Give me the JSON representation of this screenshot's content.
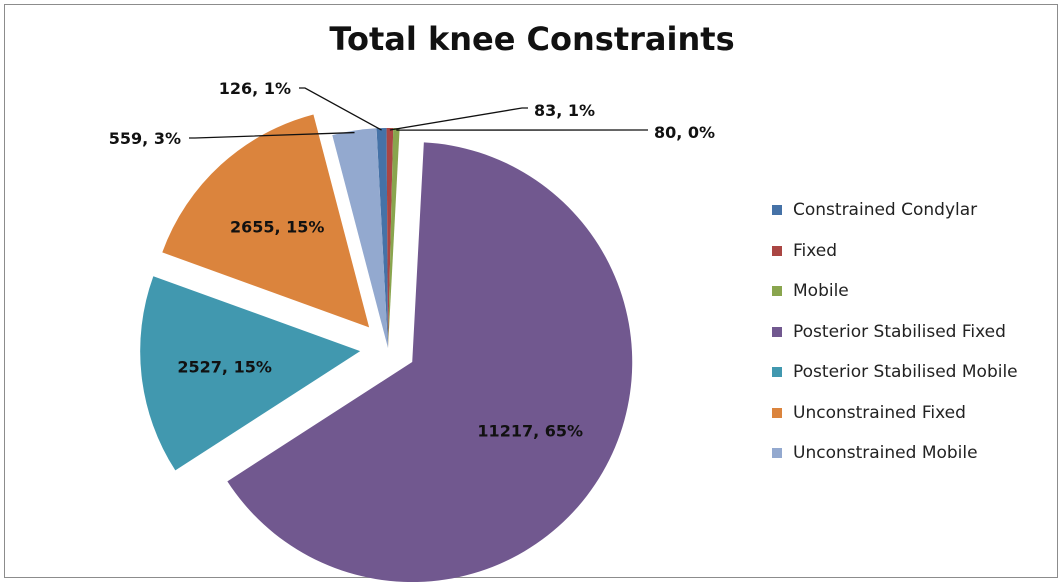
{
  "chart_data": {
    "type": "pie",
    "title": "Total knee Constraints",
    "legend_position": "right",
    "start_angle_deg": -3,
    "series": [
      {
        "name": "Constrained Condylar",
        "value": 126,
        "label": "126, 1%",
        "color": "#4572a7",
        "exploded": false,
        "side": "left"
      },
      {
        "name": "Fixed",
        "value": 83,
        "label": "83, 1%",
        "color": "#aa4643",
        "exploded": false,
        "side": "right"
      },
      {
        "name": "Mobile",
        "value": 80,
        "label": "80, 0%",
        "color": "#89a54e",
        "exploded": false,
        "side": "right"
      },
      {
        "name": "Posterior Stabilised Fixed",
        "value": 11217,
        "label": "11217, 65%",
        "color": "#71588f",
        "exploded": true,
        "side": "inside"
      },
      {
        "name": "Posterior Stabilised Mobile",
        "value": 2527,
        "label": "2527, 15%",
        "color": "#4198af",
        "exploded": true,
        "side": "inside"
      },
      {
        "name": "Unconstrained Fixed",
        "value": 2655,
        "label": "2655, 15%",
        "color": "#db843d",
        "exploded": true,
        "side": "inside"
      },
      {
        "name": "Unconstrained Mobile",
        "value": 559,
        "label": "559, 3%",
        "color": "#93a9cf",
        "exploded": false,
        "side": "left"
      }
    ]
  }
}
